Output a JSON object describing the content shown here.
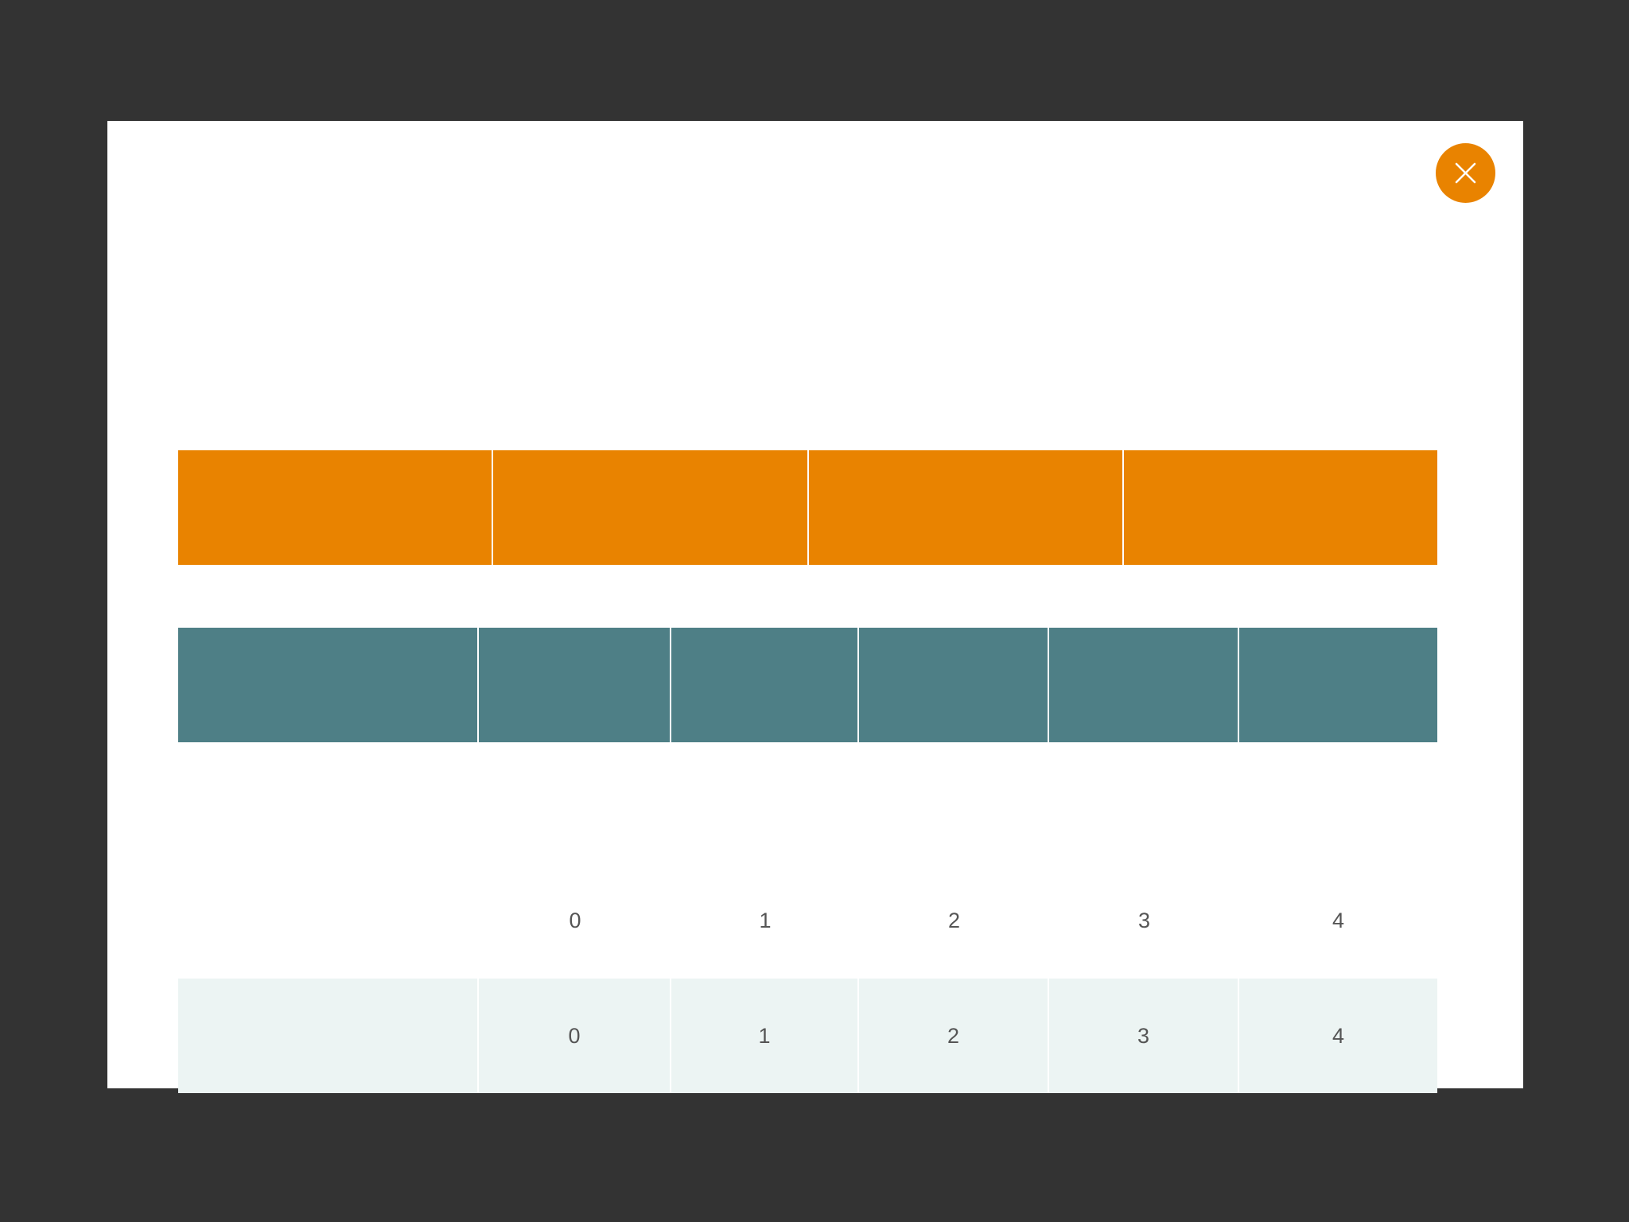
{
  "colors": {
    "backdrop": "#333333",
    "modal_background": "#ffffff",
    "accent_orange": "#e98300",
    "teal": "#4e7f86",
    "light_teal": "#ecf4f3",
    "text": "#555555"
  },
  "close_button": {
    "icon": "close-icon"
  },
  "orange_bar": {
    "segment_count": 4
  },
  "teal_bar": {
    "segment_count": 6
  },
  "labels_row": [
    "",
    "0",
    "1",
    "2",
    "3",
    "4"
  ],
  "light_row": [
    "",
    "0",
    "1",
    "2",
    "3",
    "4"
  ]
}
